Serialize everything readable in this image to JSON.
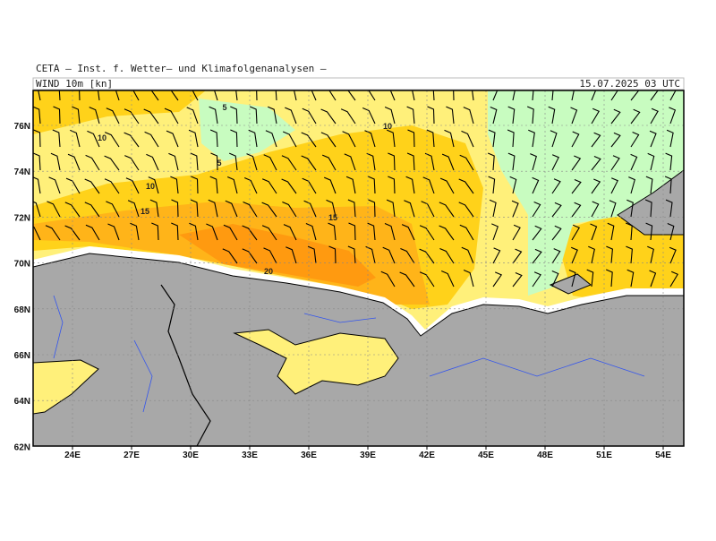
{
  "header": {
    "institute": "CETA — Inst. f. Wetter— und Klimafolgenanalysen —",
    "product": "WIND  10m  [kn]",
    "valid": "15.07.2025  03  UTC"
  },
  "axes": {
    "lat_labels": [
      "76N",
      "74N",
      "72N",
      "70N",
      "68N",
      "66N",
      "64N",
      "62N"
    ],
    "lon_labels": [
      "24E",
      "27E",
      "30E",
      "33E",
      "36E",
      "39E",
      "42E",
      "45E",
      "48E",
      "51E",
      "54E"
    ]
  },
  "contour_labels": [
    5,
    5,
    10,
    10,
    10,
    15,
    15,
    20
  ]
}
